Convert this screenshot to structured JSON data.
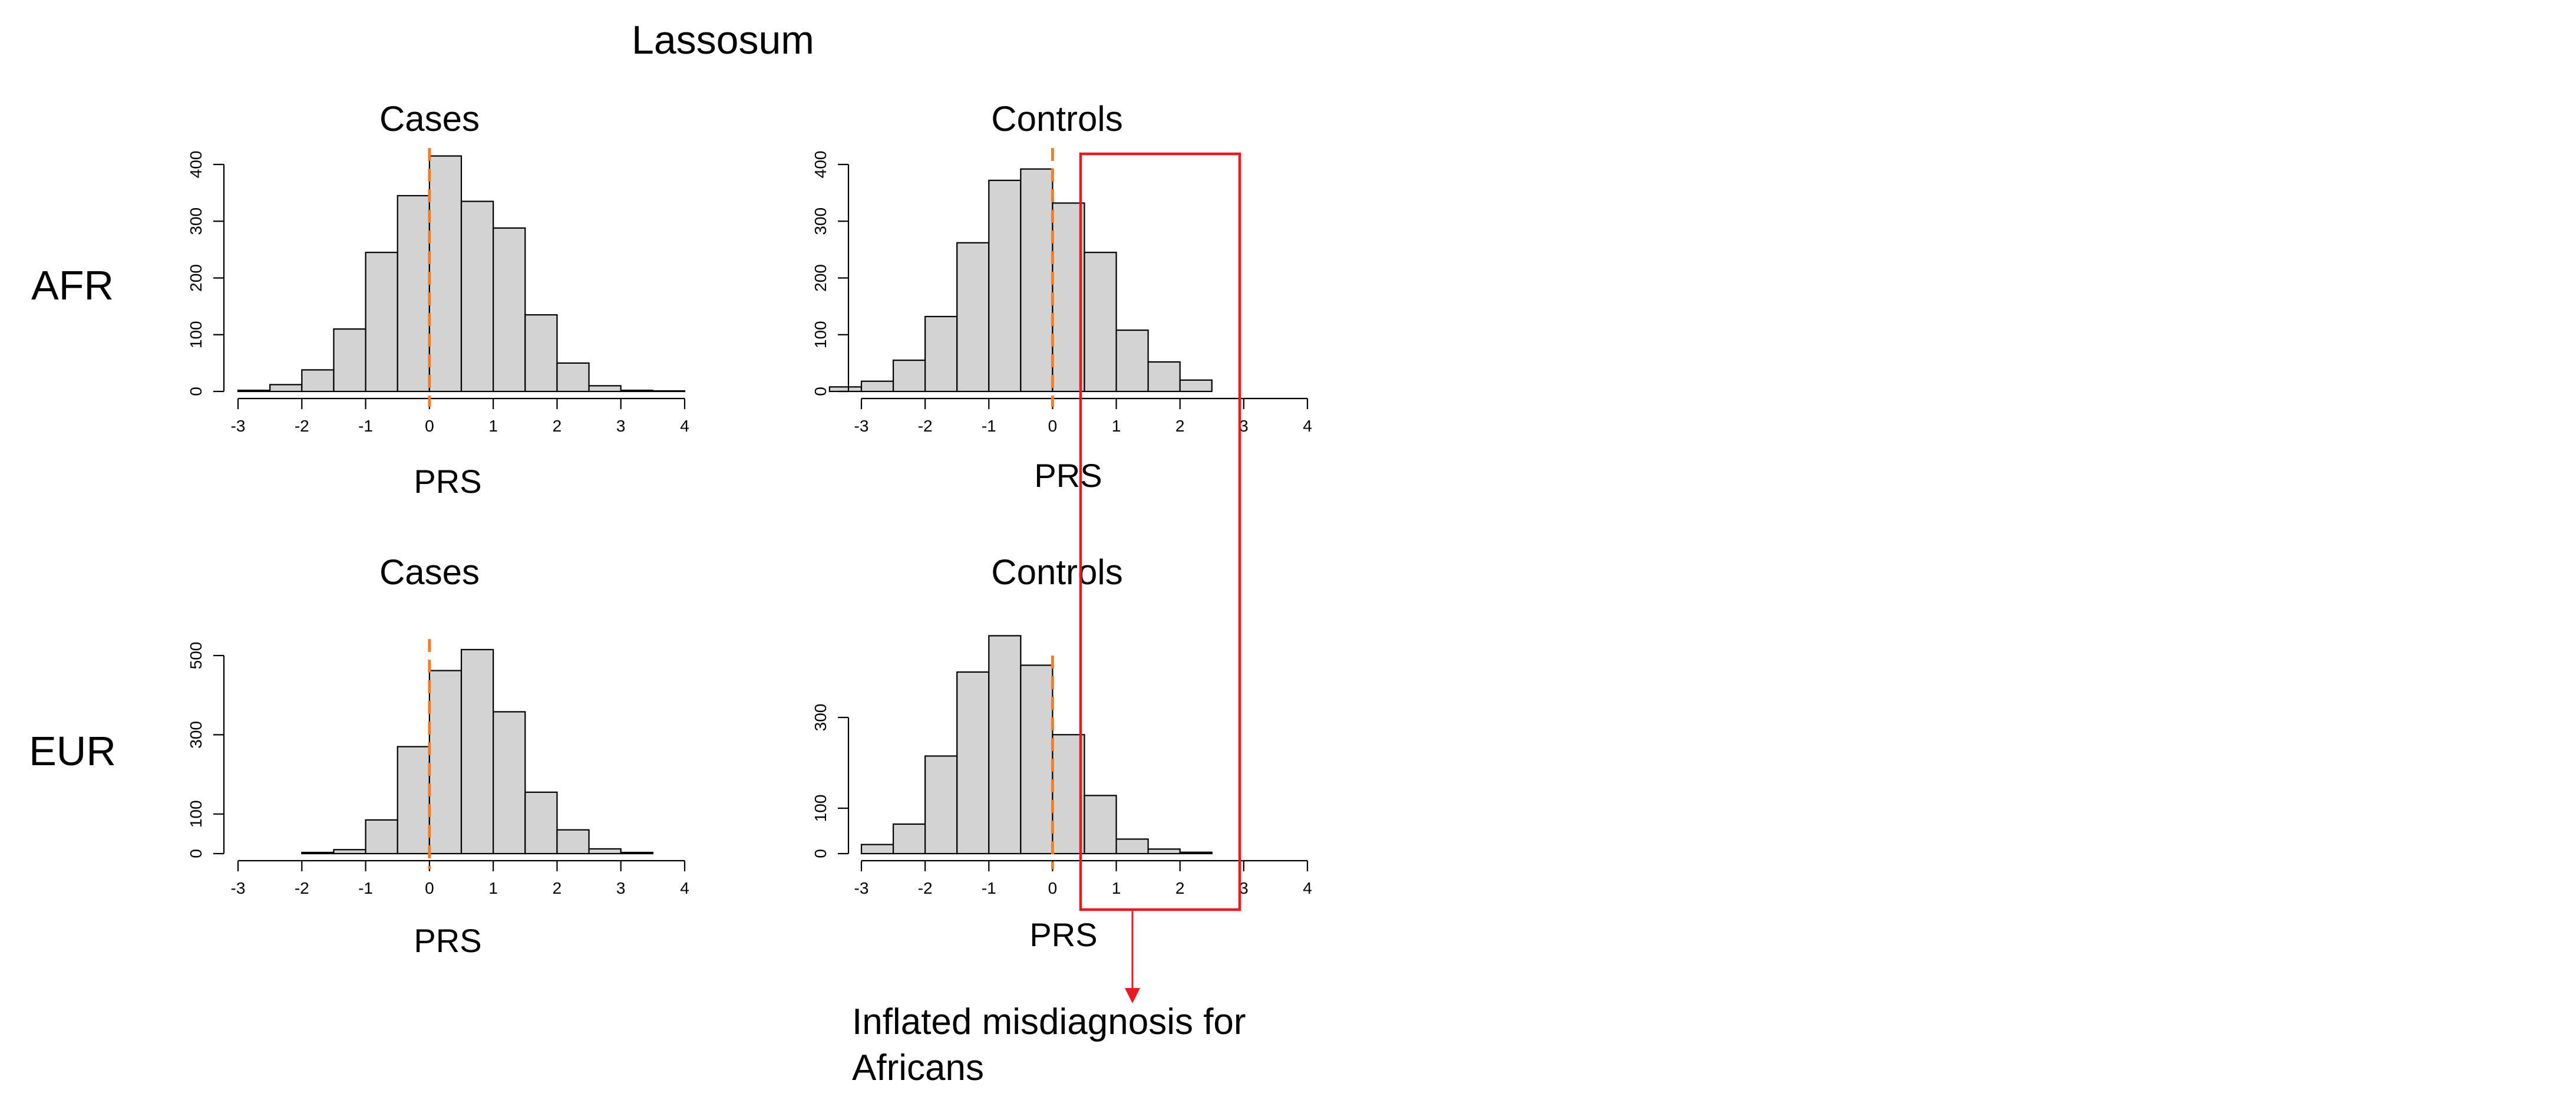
{
  "figure": {
    "title": "Lassosum",
    "row_labels": [
      "AFR",
      "EUR"
    ],
    "colors": {
      "bar_fill": "#d3d3d3",
      "bar_stroke": "#000000",
      "threshold_line": "#f07f2a",
      "highlight": "#e8191f"
    }
  },
  "annotation": {
    "text": "Inflated misdiagnosis for Africans"
  },
  "chart_data": [
    {
      "type": "bar",
      "panel": "afr-cases",
      "title": "Cases",
      "xlabel": "PRS",
      "ylabel": "",
      "bin_edges": [
        -3,
        -2.5,
        -2,
        -1.5,
        -1,
        -0.5,
        0,
        0.5,
        1,
        1.5,
        2,
        2.5,
        3,
        3.5,
        4
      ],
      "values": [
        2,
        12,
        38,
        110,
        245,
        345,
        415,
        335,
        288,
        135,
        50,
        10,
        2,
        1
      ],
      "xlim": [
        -3,
        4
      ],
      "ylim": [
        0,
        400
      ],
      "x_ticks": [
        -3,
        -2,
        -1,
        0,
        1,
        2,
        3,
        4
      ],
      "y_ticks": [
        0,
        100,
        200,
        300,
        400
      ],
      "threshold_x": 0
    },
    {
      "type": "bar",
      "panel": "afr-controls",
      "title": "Controls",
      "xlabel": "PRS",
      "ylabel": "",
      "bin_edges": [
        -3.5,
        -3,
        -2.5,
        -2,
        -1.5,
        -1,
        -0.5,
        0,
        0.5,
        1,
        1.5,
        2,
        2.5
      ],
      "values": [
        8,
        18,
        55,
        132,
        262,
        372,
        392,
        332,
        245,
        108,
        52,
        20
      ],
      "xlim": [
        -3,
        4
      ],
      "ylim": [
        0,
        400
      ],
      "x_ticks": [
        -3,
        -2,
        -1,
        0,
        1,
        2,
        3,
        4
      ],
      "y_ticks": [
        0,
        100,
        200,
        300,
        400
      ],
      "threshold_x": 0
    },
    {
      "type": "bar",
      "panel": "eur-cases",
      "title": "Cases",
      "xlabel": "PRS",
      "ylabel": "",
      "bin_edges": [
        -2,
        -1.5,
        -1,
        -0.5,
        0,
        0.5,
        1,
        1.5,
        2,
        2.5,
        3,
        3.5
      ],
      "values": [
        3,
        10,
        85,
        270,
        462,
        515,
        358,
        155,
        60,
        12,
        3
      ],
      "xlim": [
        -3,
        4
      ],
      "ylim": [
        0,
        500
      ],
      "x_ticks": [
        -3,
        -2,
        -1,
        0,
        1,
        2,
        3,
        4
      ],
      "y_ticks": [
        0,
        100,
        300,
        500
      ],
      "threshold_x": 0
    },
    {
      "type": "bar",
      "panel": "eur-controls",
      "title": "Controls",
      "xlabel": "PRS",
      "ylabel": "",
      "bin_edges": [
        -3,
        -2.5,
        -2,
        -1.5,
        -1,
        -0.5,
        0,
        0.5,
        1,
        1.5,
        2,
        2.5
      ],
      "values": [
        20,
        65,
        215,
        400,
        480,
        415,
        262,
        128,
        32,
        10,
        3
      ],
      "xlim": [
        -3,
        4
      ],
      "ylim": [
        0,
        400
      ],
      "x_ticks": [
        -3,
        -2,
        -1,
        0,
        1,
        2,
        3,
        4
      ],
      "y_ticks": [
        0,
        100,
        300
      ],
      "threshold_x": 0
    }
  ]
}
